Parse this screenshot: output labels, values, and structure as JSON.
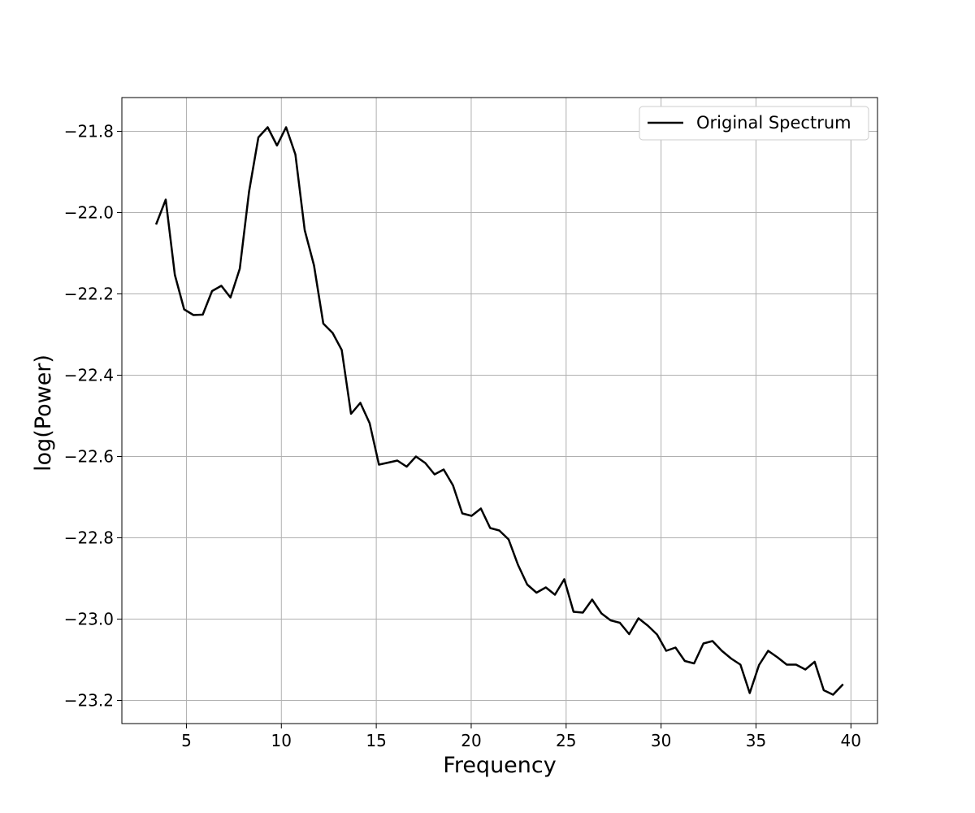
{
  "chart_data": {
    "type": "line",
    "title": "",
    "xlabel": "Frequency",
    "ylabel": "log(Power)",
    "xlim": [
      1.6,
      41.4
    ],
    "ylim": [
      -23.257,
      -21.717
    ],
    "xticks": [
      5,
      10,
      15,
      20,
      25,
      30,
      35,
      40
    ],
    "xtick_labels": [
      "5",
      "10",
      "15",
      "20",
      "25",
      "30",
      "35",
      "40"
    ],
    "yticks": [
      -21.8,
      -22.0,
      -22.2,
      -22.4,
      -22.6,
      -22.8,
      -23.0,
      -23.2
    ],
    "ytick_labels": [
      "−21.8",
      "−22.0",
      "−22.2",
      "−22.4",
      "−22.6",
      "−22.8",
      "−23.0",
      "−23.2"
    ],
    "grid": true,
    "legend_position": "top-right",
    "series": [
      {
        "name": "Original Spectrum",
        "color": "#000000",
        "x": [
          3.42,
          3.91,
          4.39,
          4.88,
          5.37,
          5.86,
          6.35,
          6.84,
          7.32,
          7.81,
          8.3,
          8.79,
          9.28,
          9.77,
          10.25,
          10.74,
          11.23,
          11.72,
          12.21,
          12.7,
          13.18,
          13.67,
          14.16,
          14.65,
          15.14,
          15.63,
          16.11,
          16.6,
          17.09,
          17.58,
          18.07,
          18.55,
          19.04,
          19.53,
          20.02,
          20.51,
          21.0,
          21.48,
          21.97,
          22.46,
          22.95,
          23.44,
          23.93,
          24.41,
          24.9,
          25.39,
          25.88,
          26.37,
          26.86,
          27.34,
          27.83,
          28.32,
          28.81,
          29.3,
          29.79,
          30.27,
          30.76,
          31.25,
          31.74,
          32.23,
          32.71,
          33.2,
          33.69,
          34.18,
          34.67,
          35.16,
          35.64,
          36.13,
          36.62,
          37.11,
          37.6,
          38.09,
          38.57,
          39.06,
          39.55
        ],
        "y": [
          -22.027,
          -21.968,
          -22.153,
          -22.238,
          -22.252,
          -22.251,
          -22.193,
          -22.18,
          -22.209,
          -22.138,
          -21.948,
          -21.815,
          -21.79,
          -21.835,
          -21.79,
          -21.857,
          -22.043,
          -22.13,
          -22.273,
          -22.296,
          -22.338,
          -22.495,
          -22.468,
          -22.518,
          -22.62,
          -22.615,
          -22.61,
          -22.625,
          -22.6,
          -22.616,
          -22.644,
          -22.632,
          -22.671,
          -22.74,
          -22.746,
          -22.728,
          -22.776,
          -22.782,
          -22.804,
          -22.866,
          -22.915,
          -22.935,
          -22.922,
          -22.94,
          -22.902,
          -22.982,
          -22.984,
          -22.952,
          -22.986,
          -23.003,
          -23.009,
          -23.037,
          -22.998,
          -23.016,
          -23.038,
          -23.078,
          -23.07,
          -23.103,
          -23.109,
          -23.06,
          -23.054,
          -23.078,
          -23.097,
          -23.112,
          -23.182,
          -23.113,
          -23.078,
          -23.094,
          -23.112,
          -23.112,
          -23.124,
          -23.105,
          -23.175,
          -23.186,
          -23.162
        ]
      }
    ]
  }
}
